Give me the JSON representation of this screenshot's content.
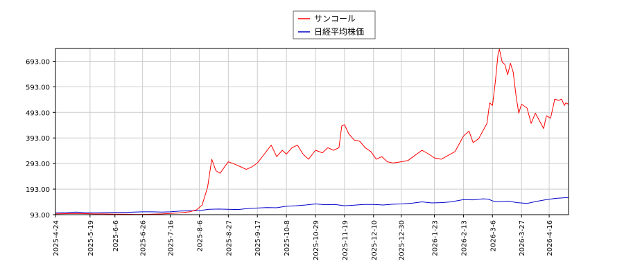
{
  "chart_data": {
    "type": "line",
    "title": "",
    "xlabel": "",
    "ylabel": "",
    "x_ticks": [
      "2025-4-24",
      "2025-5-19",
      "2025-6-6",
      "2025-6-26",
      "2025-7-16",
      "2025-8-6",
      "2025-8-27",
      "2025-9-17",
      "2025-10-8",
      "2025-10-29",
      "2025-11-19",
      "2025-12-10",
      "2025-12-30",
      "2026-1-23",
      "2026-2-13",
      "2026-3-6",
      "2026-3-27",
      "2026-4-16"
    ],
    "y_ticks": [
      "93.00",
      "193.00",
      "293.00",
      "393.00",
      "493.00",
      "593.00",
      "693.00"
    ],
    "ylim": [
      93,
      743
    ],
    "xlim": [
      "2025-04-24",
      "2026-04-30"
    ],
    "grid": true,
    "legend_position": "top-center",
    "series": [
      {
        "name": "サンコール",
        "color": "#ff0000",
        "points": [
          [
            "2025-04-24",
            96
          ],
          [
            "2025-05-02",
            97
          ],
          [
            "2025-05-09",
            98
          ],
          [
            "2025-05-15",
            97
          ],
          [
            "2025-05-22",
            96
          ],
          [
            "2025-05-29",
            96
          ],
          [
            "2025-06-06",
            95
          ],
          [
            "2025-06-13",
            95
          ],
          [
            "2025-06-20",
            94
          ],
          [
            "2025-06-26",
            94
          ],
          [
            "2025-07-03",
            95
          ],
          [
            "2025-07-10",
            96
          ],
          [
            "2025-07-16",
            98
          ],
          [
            "2025-07-23",
            100
          ],
          [
            "2025-07-30",
            104
          ],
          [
            "2025-08-04",
            112
          ],
          [
            "2025-08-08",
            130
          ],
          [
            "2025-08-12",
            200
          ],
          [
            "2025-08-15",
            310
          ],
          [
            "2025-08-18",
            265
          ],
          [
            "2025-08-21",
            255
          ],
          [
            "2025-08-25",
            285
          ],
          [
            "2025-08-27",
            300
          ],
          [
            "2025-09-01",
            290
          ],
          [
            "2025-09-05",
            280
          ],
          [
            "2025-09-09",
            270
          ],
          [
            "2025-09-13",
            280
          ],
          [
            "2025-09-17",
            295
          ],
          [
            "2025-09-22",
            330
          ],
          [
            "2025-09-27",
            365
          ],
          [
            "2025-10-01",
            320
          ],
          [
            "2025-10-05",
            345
          ],
          [
            "2025-10-08",
            330
          ],
          [
            "2025-10-12",
            355
          ],
          [
            "2025-10-16",
            365
          ],
          [
            "2025-10-20",
            330
          ],
          [
            "2025-10-24",
            310
          ],
          [
            "2025-10-29",
            345
          ],
          [
            "2025-11-03",
            335
          ],
          [
            "2025-11-07",
            355
          ],
          [
            "2025-11-11",
            345
          ],
          [
            "2025-11-15",
            355
          ],
          [
            "2025-11-17",
            440
          ],
          [
            "2025-11-19",
            445
          ],
          [
            "2025-11-22",
            410
          ],
          [
            "2025-11-26",
            385
          ],
          [
            "2025-11-30",
            380
          ],
          [
            "2025-12-04",
            355
          ],
          [
            "2025-12-08",
            340
          ],
          [
            "2025-12-12",
            310
          ],
          [
            "2025-12-16",
            320
          ],
          [
            "2025-12-20",
            300
          ],
          [
            "2025-12-24",
            295
          ],
          [
            "2025-12-30",
            300
          ],
          [
            "2026-01-04",
            305
          ],
          [
            "2026-01-09",
            325
          ],
          [
            "2026-01-14",
            345
          ],
          [
            "2026-01-19",
            330
          ],
          [
            "2026-01-23",
            315
          ],
          [
            "2026-01-28",
            310
          ],
          [
            "2026-02-02",
            325
          ],
          [
            "2026-02-07",
            340
          ],
          [
            "2026-02-13",
            400
          ],
          [
            "2026-02-17",
            420
          ],
          [
            "2026-02-20",
            375
          ],
          [
            "2026-02-24",
            390
          ],
          [
            "2026-02-28",
            430
          ],
          [
            "2026-03-02",
            450
          ],
          [
            "2026-03-04",
            530
          ],
          [
            "2026-03-06",
            520
          ],
          [
            "2026-03-08",
            610
          ],
          [
            "2026-03-10",
            720
          ],
          [
            "2026-03-11",
            740
          ],
          [
            "2026-03-13",
            690
          ],
          [
            "2026-03-15",
            680
          ],
          [
            "2026-03-17",
            640
          ],
          [
            "2026-03-19",
            685
          ],
          [
            "2026-03-21",
            650
          ],
          [
            "2026-03-23",
            560
          ],
          [
            "2026-03-25",
            490
          ],
          [
            "2026-03-27",
            525
          ],
          [
            "2026-03-31",
            510
          ],
          [
            "2026-04-03",
            450
          ],
          [
            "2026-04-06",
            490
          ],
          [
            "2026-04-09",
            460
          ],
          [
            "2026-04-12",
            430
          ],
          [
            "2026-04-14",
            480
          ],
          [
            "2026-04-17",
            470
          ],
          [
            "2026-04-20",
            545
          ],
          [
            "2026-04-23",
            540
          ],
          [
            "2026-04-25",
            545
          ],
          [
            "2026-04-27",
            520
          ],
          [
            "2026-04-28",
            530
          ],
          [
            "2026-04-30",
            525
          ]
        ]
      },
      {
        "name": "日経平均株価",
        "color": "#0000cc",
        "points": [
          [
            "2025-04-24",
            100
          ],
          [
            "2025-05-02",
            101
          ],
          [
            "2025-05-09",
            103
          ],
          [
            "2025-05-15",
            101
          ],
          [
            "2025-05-22",
            100
          ],
          [
            "2025-05-29",
            101
          ],
          [
            "2025-06-06",
            102
          ],
          [
            "2025-06-13",
            102
          ],
          [
            "2025-06-20",
            103
          ],
          [
            "2025-06-26",
            104
          ],
          [
            "2025-07-03",
            104
          ],
          [
            "2025-07-10",
            103
          ],
          [
            "2025-07-16",
            104
          ],
          [
            "2025-07-23",
            107
          ],
          [
            "2025-07-30",
            108
          ],
          [
            "2025-08-06",
            109
          ],
          [
            "2025-08-13",
            114
          ],
          [
            "2025-08-20",
            115
          ],
          [
            "2025-08-27",
            114
          ],
          [
            "2025-09-03",
            113
          ],
          [
            "2025-09-10",
            117
          ],
          [
            "2025-09-17",
            119
          ],
          [
            "2025-09-24",
            121
          ],
          [
            "2025-10-01",
            120
          ],
          [
            "2025-10-08",
            126
          ],
          [
            "2025-10-15",
            128
          ],
          [
            "2025-10-22",
            131
          ],
          [
            "2025-10-29",
            135
          ],
          [
            "2025-11-05",
            132
          ],
          [
            "2025-11-12",
            133
          ],
          [
            "2025-11-19",
            128
          ],
          [
            "2025-11-26",
            130
          ],
          [
            "2025-12-03",
            133
          ],
          [
            "2025-12-10",
            133
          ],
          [
            "2025-12-17",
            131
          ],
          [
            "2025-12-24",
            134
          ],
          [
            "2025-12-30",
            135
          ],
          [
            "2026-01-07",
            138
          ],
          [
            "2026-01-14",
            143
          ],
          [
            "2026-01-21",
            139
          ],
          [
            "2026-01-28",
            140
          ],
          [
            "2026-02-04",
            143
          ],
          [
            "2026-02-13",
            152
          ],
          [
            "2026-02-20",
            151
          ],
          [
            "2026-02-27",
            155
          ],
          [
            "2026-03-03",
            154
          ],
          [
            "2026-03-06",
            147
          ],
          [
            "2026-03-10",
            143
          ],
          [
            "2026-03-17",
            146
          ],
          [
            "2026-03-24",
            140
          ],
          [
            "2026-03-31",
            137
          ],
          [
            "2026-04-07",
            145
          ],
          [
            "2026-04-14",
            152
          ],
          [
            "2026-04-21",
            157
          ],
          [
            "2026-04-30",
            160
          ]
        ]
      }
    ]
  }
}
